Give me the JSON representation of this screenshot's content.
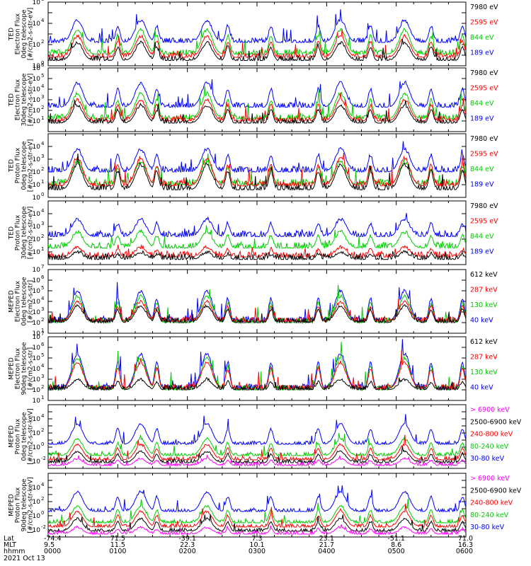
{
  "chart_data": {
    "type": "line",
    "x_axis": {
      "row_labels": [
        "Lat",
        "MLT",
        "hhmm",
        "2021 Oct 13"
      ],
      "ticks": [
        {
          "lat": "-74.4",
          "mlt": "9.5",
          "hhmm": "0000"
        },
        {
          "lat": "71.5",
          "mlt": "11.5",
          "hhmm": "0100"
        },
        {
          "lat": "-39.1",
          "mlt": "22.3",
          "hhmm": "0200"
        },
        {
          "lat": "7.3",
          "mlt": "10.1",
          "hhmm": "0300"
        },
        {
          "lat": "23.1",
          "mlt": "21.7",
          "hhmm": "0400"
        },
        {
          "lat": "-51.1",
          "mlt": "8.6",
          "hhmm": "0500"
        },
        {
          "lat": "71.0",
          "mlt": "16.3",
          "hhmm": "0600"
        }
      ],
      "range_hours": [
        0,
        6
      ]
    },
    "panels": [
      {
        "ylabel": [
          "TED",
          "Electron Flux",
          "0deg telescope",
          "[#/cm2-s-str-eV]"
        ],
        "yscale": "log",
        "ylim_exp": [
          0,
          6
        ],
        "ytick_labels": [
          {
            "exp": 0,
            "text": "10"
          },
          {
            "exp": 2,
            "text": "10"
          },
          {
            "exp": 4,
            "text": "10"
          },
          {
            "exp": 6,
            "text": "10"
          }
        ],
        "series": [
          {
            "name": "7980 eV",
            "color": "#000000",
            "base": 0.5,
            "peak": 2.2
          },
          {
            "name": "2595 eV",
            "color": "#ff0000",
            "base": 0.8,
            "peak": 2.8
          },
          {
            "name": "844 eV",
            "color": "#00cc00",
            "base": 1.1,
            "peak": 3.4
          },
          {
            "name": "189 eV",
            "color": "#0000ff",
            "base": 2.2,
            "peak": 4.3
          }
        ]
      },
      {
        "ylabel": [
          "TED",
          "Electron Flux",
          "30deg telescope",
          "[#/cm2-s-str-eV]"
        ],
        "yscale": "log",
        "ylim_exp": [
          0,
          6
        ],
        "ytick_labels": [
          {
            "exp": 1,
            "text": "10"
          },
          {
            "exp": 2,
            "text": "10"
          },
          {
            "exp": 3,
            "text": "10"
          },
          {
            "exp": 4,
            "text": "10"
          },
          {
            "exp": 5,
            "text": "10"
          },
          {
            "exp": 6,
            "text": "10"
          }
        ],
        "series": [
          {
            "name": "7980 eV",
            "color": "#000000",
            "base": 0.8,
            "peak": 2.5
          },
          {
            "name": "2595 eV",
            "color": "#ff0000",
            "base": 1.0,
            "peak": 3.0
          },
          {
            "name": "844 eV",
            "color": "#00cc00",
            "base": 1.2,
            "peak": 3.6
          },
          {
            "name": "189 eV",
            "color": "#0000ff",
            "base": 2.3,
            "peak": 4.6
          }
        ]
      },
      {
        "ylabel": [
          "TED",
          "Proton Flux",
          "0deg telescope",
          "[#/cm2-s-str-eV]"
        ],
        "yscale": "log",
        "ylim_exp": [
          0,
          5
        ],
        "ytick_labels": [
          {
            "exp": 0,
            "text": "10"
          },
          {
            "exp": 1,
            "text": "10"
          },
          {
            "exp": 2,
            "text": "10"
          },
          {
            "exp": 3,
            "text": "10"
          },
          {
            "exp": 4,
            "text": "10"
          }
        ],
        "series": [
          {
            "name": "7980 eV",
            "color": "#000000",
            "base": 0.6,
            "peak": 2.6
          },
          {
            "name": "2595 eV",
            "color": "#ff0000",
            "base": 0.9,
            "peak": 3.1
          },
          {
            "name": "844 eV",
            "color": "#00cc00",
            "base": 1.0,
            "peak": 2.8
          },
          {
            "name": "189 eV",
            "color": "#0000ff",
            "base": 2.0,
            "peak": 3.8
          }
        ]
      },
      {
        "ylabel": [
          "TED",
          "Proton Flux",
          "30deg telescope",
          "[#/cm2-s-str-eV]"
        ],
        "yscale": "log",
        "ylim_exp": [
          0,
          5
        ],
        "ytick_labels": [
          {
            "exp": 1,
            "text": "10"
          },
          {
            "exp": 2,
            "text": "10"
          },
          {
            "exp": 3,
            "text": "10"
          },
          {
            "exp": 4,
            "text": "10"
          }
        ],
        "series": [
          {
            "name": "7980 eV",
            "color": "#000000",
            "base": 0.4,
            "peak": 1.0
          },
          {
            "name": "2595 eV",
            "color": "#ff0000",
            "base": 0.6,
            "peak": 1.4
          },
          {
            "name": "844 eV",
            "color": "#00cc00",
            "base": 1.3,
            "peak": 2.6
          },
          {
            "name": "189 eV",
            "color": "#0000ff",
            "base": 2.2,
            "peak": 3.6
          }
        ]
      },
      {
        "ylabel": [
          "MEPED",
          "Electron Flux",
          "0deg telescope",
          "[#/cm2-s-str]"
        ],
        "yscale": "log",
        "ylim_exp": [
          1,
          7
        ],
        "ytick_labels": [
          {
            "exp": 1,
            "text": "10"
          },
          {
            "exp": 2,
            "text": "10"
          },
          {
            "exp": 3,
            "text": "10"
          },
          {
            "exp": 4,
            "text": "10"
          },
          {
            "exp": 5,
            "text": "10"
          },
          {
            "exp": 6,
            "text": "10"
          },
          {
            "exp": 7,
            "text": "10"
          }
        ],
        "series": [
          {
            "name": "612 keV",
            "color": "#000000",
            "base": 2.0,
            "peak": 3.6
          },
          {
            "name": "287 keV",
            "color": "#ff0000",
            "base": 2.1,
            "peak": 4.0
          },
          {
            "name": "130 keV",
            "color": "#00cc00",
            "base": 2.0,
            "peak": 4.5
          },
          {
            "name": "40 keV",
            "color": "#0000ff",
            "base": 2.1,
            "peak": 5.0
          }
        ]
      },
      {
        "ylabel": [
          "MEPED",
          "Electron Flux",
          "90deg telescope",
          "[#/cm2-s-str]"
        ],
        "yscale": "log",
        "ylim_exp": [
          1,
          7
        ],
        "ytick_labels": [
          {
            "exp": 1,
            "text": "10"
          },
          {
            "exp": 2,
            "text": "10"
          },
          {
            "exp": 3,
            "text": "10"
          },
          {
            "exp": 4,
            "text": "10"
          },
          {
            "exp": 5,
            "text": "10"
          },
          {
            "exp": 6,
            "text": "10"
          },
          {
            "exp": 7,
            "text": "10"
          }
        ],
        "series": [
          {
            "name": "612 keV",
            "color": "#000000",
            "base": 2.0,
            "peak": 3.0
          },
          {
            "name": "287 keV",
            "color": "#ff0000",
            "base": 2.1,
            "peak": 4.6
          },
          {
            "name": "130 keV",
            "color": "#00cc00",
            "base": 2.0,
            "peak": 5.0
          },
          {
            "name": "40 keV",
            "color": "#0000ff",
            "base": 2.1,
            "peak": 5.4
          }
        ]
      },
      {
        "ylabel": [
          "MEPED",
          "Proton Flux",
          "0deg telescope",
          "[#/cm2-s-str-keV]"
        ],
        "yscale": "log",
        "ylim_exp": [
          -3,
          6
        ],
        "ytick_labels": [
          {
            "exp": -2,
            "text": "10"
          },
          {
            "exp": 0,
            "text": "10"
          },
          {
            "exp": 2,
            "text": "10"
          },
          {
            "exp": 4,
            "text": "10"
          }
        ],
        "series": [
          {
            "name": "> 6900 keV",
            "color": "#ff00ff",
            "base": -2.6,
            "peak": -1.6
          },
          {
            "name": "2500-6900 keV",
            "color": "#000000",
            "base": -2.2,
            "peak": -0.6
          },
          {
            "name": "240-800 keV",
            "color": "#ff0000",
            "base": -1.8,
            "peak": 0.4
          },
          {
            "name": "80-240 keV",
            "color": "#00cc00",
            "base": -1.2,
            "peak": 1.2
          },
          {
            "name": "30-80 keV",
            "color": "#0000ff",
            "base": 0.4,
            "peak": 3.3
          }
        ]
      },
      {
        "ylabel": [
          "MEPED",
          "Proton Flux",
          "90deg telescope",
          "[#/cm2-s-str-keV]"
        ],
        "yscale": "log",
        "ylim_exp": [
          -3,
          6
        ],
        "ytick_labels": [
          {
            "exp": -2,
            "text": "10"
          },
          {
            "exp": 0,
            "text": "10"
          },
          {
            "exp": 2,
            "text": "10"
          },
          {
            "exp": 4,
            "text": "10"
          }
        ],
        "series": [
          {
            "name": "> 6900 keV",
            "color": "#ff00ff",
            "base": -2.6,
            "peak": -1.6
          },
          {
            "name": "2500-6900 keV",
            "color": "#000000",
            "base": -2.2,
            "peak": -0.4
          },
          {
            "name": "240-800 keV",
            "color": "#ff0000",
            "base": -1.6,
            "peak": 0.6
          },
          {
            "name": "80-240 keV",
            "color": "#00cc00",
            "base": -1.0,
            "peak": 1.4
          },
          {
            "name": "30-80 keV",
            "color": "#0000ff",
            "base": 0.6,
            "peak": 3.4
          }
        ]
      }
    ],
    "pass_centers_hours": [
      0.42,
      1.0,
      1.33,
      1.56,
      2.28,
      2.58,
      3.2,
      3.88,
      4.2,
      4.63,
      5.12,
      5.5,
      5.95
    ],
    "major_pass_hours": [
      0.42,
      1.33,
      2.28,
      4.2,
      5.12
    ]
  }
}
